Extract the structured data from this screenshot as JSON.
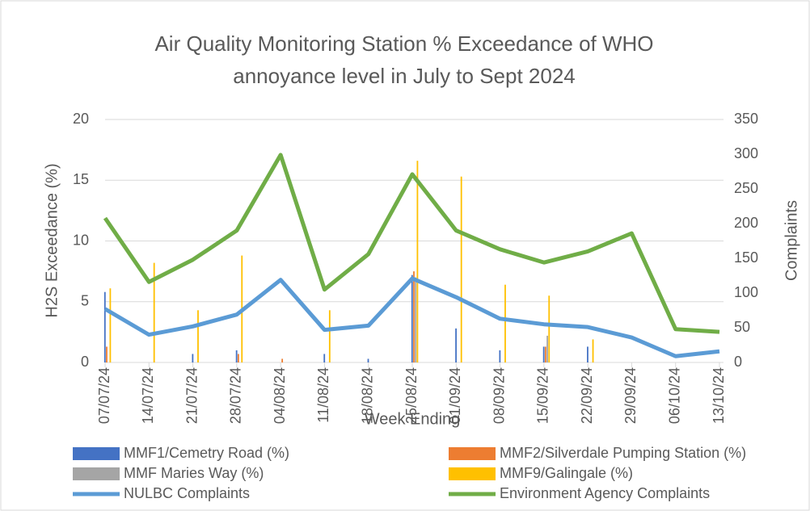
{
  "chart_data": {
    "type": "bar_line",
    "title": "Air Quality Monitoring Station % Exceedance of WHO annoyance level in July to Sept 2024",
    "x_label": "Week Ending",
    "y_label": "H2S Exceedance (%)",
    "y2_label": "Complaints",
    "categories": [
      "07/07/24",
      "14/07/24",
      "21/07/24",
      "28/07/24",
      "04/08/24",
      "11/08/24",
      "18/08/24",
      "25/08/24",
      "01/09/24",
      "08/09/24",
      "15/09/24",
      "22/09/24",
      "29/09/24",
      "06/10/24",
      "13/10/24"
    ],
    "ylim": [
      0,
      20
    ],
    "yticks": [
      0,
      5,
      10,
      15,
      20
    ],
    "y2lim": [
      0,
      350
    ],
    "y2ticks": [
      0,
      50,
      100,
      150,
      200,
      250,
      300,
      350
    ],
    "grid": true,
    "series": [
      {
        "name": "MMF1/Cemetry Road (%)",
        "kind": "bar",
        "color": "#4472c4",
        "values": [
          5.8,
          0,
          0.7,
          1.0,
          0,
          0.7,
          0.3,
          7.2,
          2.8,
          1.0,
          1.3,
          1.3,
          0,
          0,
          0
        ]
      },
      {
        "name": "MMF2/Silverdale Pumping Station (%)",
        "kind": "bar",
        "color": "#ed7d31",
        "values": [
          1.3,
          0,
          0,
          0.7,
          0.3,
          0,
          0,
          7.5,
          0,
          0,
          1.3,
          0,
          0,
          0,
          0
        ]
      },
      {
        "name": "MMF Maries Way (%)",
        "kind": "bar",
        "color": "#a5a5a5",
        "values": [
          0,
          0,
          0,
          0,
          0,
          0,
          0,
          7.0,
          0,
          0,
          2.2,
          0,
          0,
          0,
          0
        ]
      },
      {
        "name": "MMF9/Galingale (%)",
        "kind": "bar",
        "color": "#ffc000",
        "values": [
          6.1,
          8.2,
          4.3,
          8.8,
          0,
          4.3,
          0,
          16.6,
          15.3,
          6.4,
          5.5,
          1.9,
          0,
          0,
          0
        ]
      },
      {
        "name": "NULBC Complaints",
        "kind": "line",
        "axis": "y2",
        "color": "#5b9bd5",
        "values": [
          77,
          40,
          52,
          69,
          119,
          47,
          53,
          121,
          94,
          63,
          55,
          51,
          36,
          9,
          16
        ]
      },
      {
        "name": "Environment Agency Complaints",
        "kind": "line",
        "axis": "y2",
        "color": "#70ad47",
        "values": [
          208,
          116,
          148,
          190,
          299,
          105,
          156,
          271,
          190,
          163,
          144,
          160,
          186,
          48,
          44
        ]
      }
    ]
  }
}
